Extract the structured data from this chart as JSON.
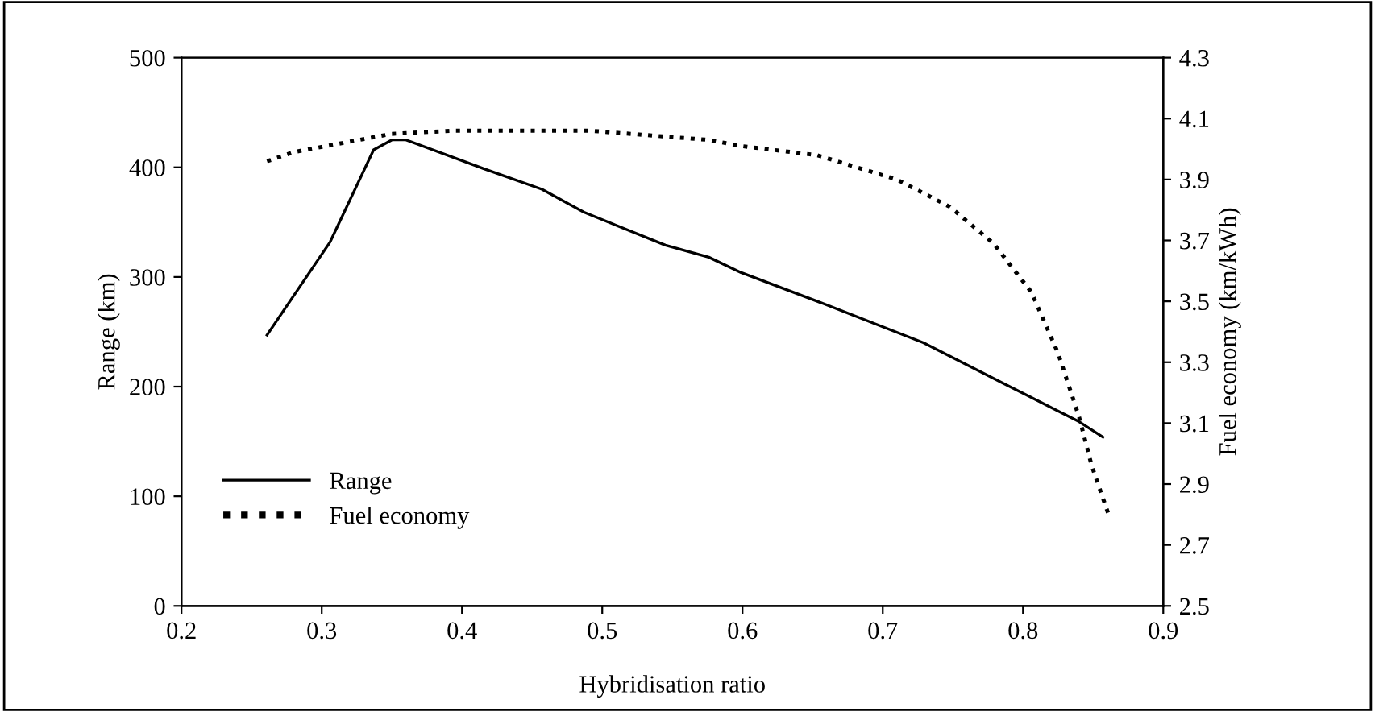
{
  "chart_data": {
    "type": "line",
    "xlabel": "Hybridisation ratio",
    "ylabel": "Range (km)",
    "y2label": "Fuel economy (km/kWh)",
    "xlim": [
      0.2,
      0.9
    ],
    "xticks": [
      0.2,
      0.3,
      0.4,
      0.5,
      0.6,
      0.7,
      0.8,
      0.9
    ],
    "ylim": [
      0,
      500
    ],
    "yticks": [
      0,
      100,
      200,
      300,
      400,
      500
    ],
    "y2lim": [
      2.5,
      4.3
    ],
    "y2ticks": [
      2.5,
      2.7,
      2.9,
      3.1,
      3.3,
      3.5,
      3.7,
      3.9,
      4.1,
      4.3
    ],
    "legend": "bottom left",
    "grid": false,
    "series": [
      {
        "name": "Range",
        "color": "#000000",
        "line_style": "solid",
        "x": [
          0.261,
          0.306,
          0.337,
          0.35,
          0.36,
          0.415,
          0.457,
          0.487,
          0.545,
          0.576,
          0.599,
          0.653,
          0.729,
          0.786,
          0.84,
          0.857
        ],
        "values": [
          247,
          332,
          416,
          425,
          425,
          399,
          380,
          359,
          329,
          318,
          304,
          278,
          240,
          203,
          168,
          154
        ]
      },
      {
        "name": "Fuel economy",
        "color": "#000000",
        "line_style": "dotted",
        "axis": "y2",
        "x": [
          0.261,
          0.28,
          0.35,
          0.392,
          0.492,
          0.576,
          0.599,
          0.653,
          0.71,
          0.748,
          0.779,
          0.806,
          0.825,
          0.84,
          0.849,
          0.861
        ],
        "values": [
          3.96,
          3.99,
          4.05,
          4.06,
          4.06,
          4.03,
          4.01,
          3.98,
          3.9,
          3.81,
          3.69,
          3.53,
          3.33,
          3.12,
          2.96,
          2.8
        ]
      }
    ]
  }
}
